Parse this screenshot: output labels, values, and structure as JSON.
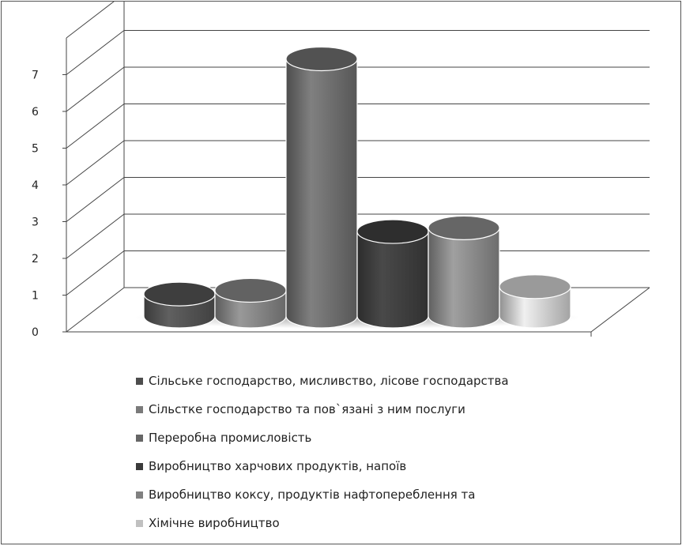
{
  "chart_data": {
    "type": "bar",
    "style": "3d-cylinder",
    "title": "",
    "xlabel": "",
    "ylabel": "",
    "ylim": [
      0,
      8
    ],
    "y_ticks": [
      "0",
      "1",
      "2",
      "3",
      "4",
      "5",
      "6",
      "7"
    ],
    "grid": true,
    "legend_position": "bottom",
    "series": [
      {
        "name": "Сільське господарство, мисливство, лісове господарства",
        "value": 0.6,
        "color": "#4d4d4d"
      },
      {
        "name": "Сільстке господарство та пов`язані з ним послуги",
        "value": 0.7,
        "color": "#7a7a7a"
      },
      {
        "name": "Переробна промисловість",
        "value": 7.0,
        "color": "#666666"
      },
      {
        "name": "Виробництво харчових продуктів, напоїв",
        "value": 2.3,
        "color": "#3a3a3a"
      },
      {
        "name": "Виробництво коксу, продуктів нафтопереблення та",
        "value": 2.4,
        "color": "#808080"
      },
      {
        "name": "Хімічне виробництво",
        "value": 0.8,
        "color": "#c0c0c0"
      }
    ]
  }
}
